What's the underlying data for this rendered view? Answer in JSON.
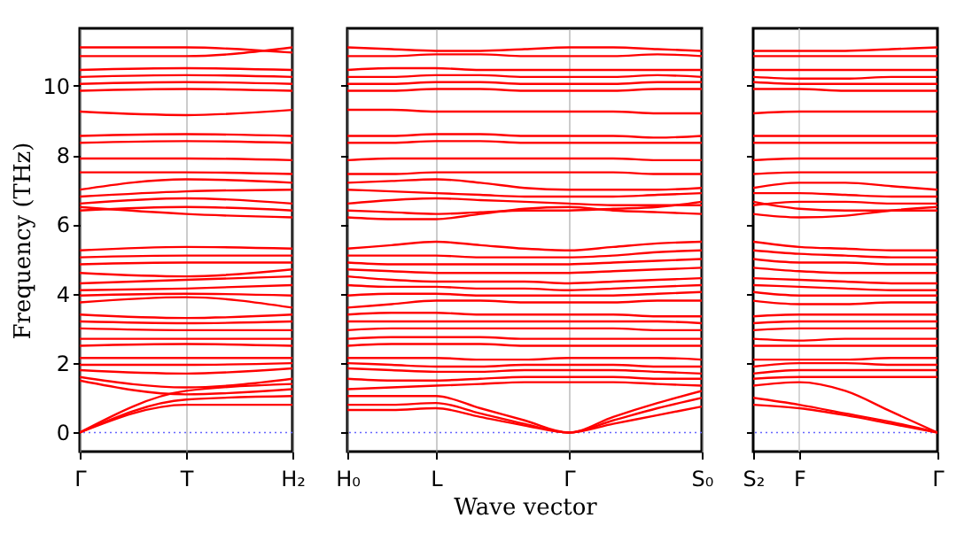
{
  "chart_data": [
    {
      "type": "line",
      "ylabel": "Frequency (THz)",
      "categories": [
        "Γ",
        "T",
        "H₂"
      ],
      "ylim": [
        -0.55,
        11.65
      ],
      "yticks": [
        0,
        2,
        4,
        6,
        8,
        10
      ],
      "grid": "x",
      "tick_labels": true,
      "ref_lines": [
        {
          "axis": "y",
          "value": 0,
          "color": "#6666ff",
          "line_style": "dotted"
        }
      ],
      "series": [
        {
          "color": "#ff0000",
          "values": [
            11.1,
            11.1,
            10.95
          ]
        },
        {
          "color": "#ff0000",
          "values": [
            10.85,
            10.85,
            11.1
          ]
        },
        {
          "color": "#ff0000",
          "values": [
            10.45,
            10.5,
            10.45
          ]
        },
        {
          "color": "#ff0000",
          "values": [
            10.25,
            10.3,
            10.25
          ]
        },
        {
          "color": "#ff0000",
          "values": [
            10.05,
            10.1,
            10.05
          ]
        },
        {
          "color": "#ff0000",
          "values": [
            9.85,
            9.9,
            9.85
          ]
        },
        {
          "color": "#ff0000",
          "values": [
            9.25,
            9.15,
            9.3
          ]
        },
        {
          "color": "#ff0000",
          "values": [
            8.55,
            8.6,
            8.55
          ]
        },
        {
          "color": "#ff0000",
          "values": [
            8.35,
            8.4,
            8.35
          ]
        },
        {
          "color": "#ff0000",
          "values": [
            7.9,
            7.9,
            7.85
          ]
        },
        {
          "color": "#ff0000",
          "values": [
            7.5,
            7.5,
            7.45
          ]
        },
        {
          "color": "#ff0000",
          "values": [
            7.0,
            7.3,
            7.2
          ]
        },
        {
          "color": "#ff0000",
          "values": [
            6.8,
            6.95,
            7.0
          ]
        },
        {
          "color": "#ff0000",
          "values": [
            6.6,
            6.75,
            6.6
          ]
        },
        {
          "color": "#ff0000",
          "values": [
            6.4,
            6.5,
            6.4
          ]
        },
        {
          "color": "#ff0000",
          "values": [
            6.5,
            6.3,
            6.2
          ]
        },
        {
          "color": "#ff0000",
          "values": [
            5.25,
            5.35,
            5.3
          ]
        },
        {
          "color": "#ff0000",
          "values": [
            5.05,
            5.1,
            5.1
          ]
        },
        {
          "color": "#ff0000",
          "values": [
            4.85,
            4.9,
            4.9
          ]
        },
        {
          "color": "#ff0000",
          "values": [
            4.6,
            4.5,
            4.7
          ]
        },
        {
          "color": "#ff0000",
          "values": [
            4.3,
            4.4,
            4.5
          ]
        },
        {
          "color": "#ff0000",
          "values": [
            4.1,
            4.15,
            4.25
          ]
        },
        {
          "color": "#ff0000",
          "values": [
            3.95,
            4.0,
            3.95
          ]
        },
        {
          "color": "#ff0000",
          "values": [
            3.75,
            3.9,
            3.6
          ]
        },
        {
          "color": "#ff0000",
          "values": [
            3.4,
            3.3,
            3.4
          ]
        },
        {
          "color": "#ff0000",
          "values": [
            3.2,
            3.15,
            3.2
          ]
        },
        {
          "color": "#ff0000",
          "values": [
            3.0,
            2.95,
            2.95
          ]
        },
        {
          "color": "#ff0000",
          "values": [
            2.7,
            2.7,
            2.7
          ]
        },
        {
          "color": "#ff0000",
          "values": [
            2.5,
            2.55,
            2.5
          ]
        },
        {
          "color": "#ff0000",
          "values": [
            2.15,
            2.15,
            2.15
          ]
        },
        {
          "color": "#ff0000",
          "values": [
            1.95,
            1.95,
            2.0
          ]
        },
        {
          "color": "#ff0000",
          "values": [
            1.8,
            1.7,
            1.85
          ]
        },
        {
          "color": "#ff0000",
          "values": [
            1.6,
            1.3,
            1.55
          ]
        },
        {
          "color": "#ff0000",
          "values": [
            1.5,
            1.1,
            1.25
          ]
        },
        {
          "color": "#ff0000",
          "values": [
            0,
            1.2,
            1.4
          ]
        },
        {
          "color": "#ff0000",
          "values": [
            0,
            0.95,
            1.05
          ]
        },
        {
          "color": "#ff0000",
          "values": [
            0,
            0.8,
            0.8
          ]
        }
      ]
    },
    {
      "type": "line",
      "xlabel": "Wave vector",
      "categories": [
        "H₀",
        null,
        "L",
        null,
        null,
        "Γ",
        null,
        null,
        "S₀"
      ],
      "ylim": [
        -0.55,
        11.65
      ],
      "grid": "x",
      "tick_labels": "x",
      "ref_lines": [
        {
          "axis": "y",
          "value": 0,
          "color": "#6666ff",
          "line_style": "dotted"
        }
      ],
      "series": [
        {
          "color": "#ff0000",
          "values": [
            11.1,
            11.05,
            11.0,
            11.0,
            11.05,
            11.1,
            11.1,
            11.05,
            11.0
          ]
        },
        {
          "color": "#ff0000",
          "values": [
            10.85,
            10.85,
            10.9,
            10.9,
            10.85,
            10.85,
            10.85,
            10.9,
            10.85
          ]
        },
        {
          "color": "#ff0000",
          "values": [
            10.45,
            10.5,
            10.5,
            10.45,
            10.45,
            10.45,
            10.45,
            10.45,
            10.45
          ]
        },
        {
          "color": "#ff0000",
          "values": [
            10.25,
            10.25,
            10.3,
            10.3,
            10.25,
            10.25,
            10.25,
            10.3,
            10.25
          ]
        },
        {
          "color": "#ff0000",
          "values": [
            10.05,
            10.05,
            10.1,
            10.1,
            10.05,
            10.05,
            10.05,
            10.1,
            10.1
          ]
        },
        {
          "color": "#ff0000",
          "values": [
            9.85,
            9.85,
            9.9,
            9.9,
            9.85,
            9.85,
            9.85,
            9.9,
            9.9
          ]
        },
        {
          "color": "#ff0000",
          "values": [
            9.3,
            9.3,
            9.25,
            9.25,
            9.25,
            9.25,
            9.25,
            9.2,
            9.2
          ]
        },
        {
          "color": "#ff0000",
          "values": [
            8.55,
            8.55,
            8.6,
            8.6,
            8.55,
            8.55,
            8.55,
            8.5,
            8.55
          ]
        },
        {
          "color": "#ff0000",
          "values": [
            8.35,
            8.35,
            8.4,
            8.4,
            8.35,
            8.35,
            8.35,
            8.35,
            8.35
          ]
        },
        {
          "color": "#ff0000",
          "values": [
            7.85,
            7.9,
            7.9,
            7.9,
            7.9,
            7.9,
            7.9,
            7.85,
            7.85
          ]
        },
        {
          "color": "#ff0000",
          "values": [
            7.45,
            7.45,
            7.5,
            7.5,
            7.5,
            7.5,
            7.5,
            7.45,
            7.45
          ]
        },
        {
          "color": "#ff0000",
          "values": [
            7.2,
            7.25,
            7.3,
            7.2,
            7.05,
            7.0,
            7.0,
            7.0,
            7.05
          ]
        },
        {
          "color": "#ff0000",
          "values": [
            7.0,
            6.95,
            6.9,
            6.85,
            6.8,
            6.8,
            6.8,
            6.85,
            6.9
          ]
        },
        {
          "color": "#ff0000",
          "values": [
            6.6,
            6.7,
            6.75,
            6.7,
            6.65,
            6.6,
            6.55,
            6.55,
            6.55
          ]
        },
        {
          "color": "#ff0000",
          "values": [
            6.4,
            6.35,
            6.3,
            6.35,
            6.4,
            6.4,
            6.45,
            6.5,
            6.65
          ]
        },
        {
          "color": "#ff0000",
          "values": [
            6.2,
            6.15,
            6.15,
            6.3,
            6.45,
            6.5,
            6.4,
            6.35,
            6.3
          ]
        },
        {
          "color": "#ff0000",
          "values": [
            5.3,
            5.4,
            5.5,
            5.4,
            5.3,
            5.25,
            5.35,
            5.45,
            5.5
          ]
        },
        {
          "color": "#ff0000",
          "values": [
            5.1,
            5.1,
            5.1,
            5.05,
            5.05,
            5.05,
            5.1,
            5.2,
            5.25
          ]
        },
        {
          "color": "#ff0000",
          "values": [
            4.9,
            4.85,
            4.85,
            4.85,
            4.85,
            4.85,
            4.9,
            4.95,
            5.0
          ]
        },
        {
          "color": "#ff0000",
          "values": [
            4.7,
            4.65,
            4.6,
            4.6,
            4.6,
            4.6,
            4.65,
            4.7,
            4.75
          ]
        },
        {
          "color": "#ff0000",
          "values": [
            4.5,
            4.4,
            4.35,
            4.35,
            4.35,
            4.3,
            4.35,
            4.4,
            4.45
          ]
        },
        {
          "color": "#ff0000",
          "values": [
            4.25,
            4.2,
            4.2,
            4.15,
            4.15,
            4.1,
            4.15,
            4.2,
            4.25
          ]
        },
        {
          "color": "#ff0000",
          "values": [
            3.95,
            4.0,
            4.0,
            3.95,
            3.95,
            3.95,
            3.95,
            4.0,
            4.05
          ]
        },
        {
          "color": "#ff0000",
          "values": [
            3.6,
            3.7,
            3.8,
            3.8,
            3.75,
            3.75,
            3.75,
            3.8,
            3.8
          ]
        },
        {
          "color": "#ff0000",
          "values": [
            3.4,
            3.45,
            3.45,
            3.4,
            3.4,
            3.4,
            3.4,
            3.35,
            3.35
          ]
        },
        {
          "color": "#ff0000",
          "values": [
            3.2,
            3.2,
            3.2,
            3.2,
            3.2,
            3.2,
            3.2,
            3.2,
            3.15
          ]
        },
        {
          "color": "#ff0000",
          "values": [
            2.95,
            3.0,
            3.0,
            3.0,
            3.0,
            3.0,
            3.0,
            2.95,
            2.95
          ]
        },
        {
          "color": "#ff0000",
          "values": [
            2.7,
            2.75,
            2.75,
            2.75,
            2.7,
            2.7,
            2.7,
            2.7,
            2.7
          ]
        },
        {
          "color": "#ff0000",
          "values": [
            2.5,
            2.55,
            2.55,
            2.55,
            2.5,
            2.5,
            2.5,
            2.5,
            2.5
          ]
        },
        {
          "color": "#ff0000",
          "values": [
            2.15,
            2.15,
            2.15,
            2.1,
            2.1,
            2.15,
            2.15,
            2.15,
            2.1
          ]
        },
        {
          "color": "#ff0000",
          "values": [
            2.0,
            1.95,
            1.9,
            1.9,
            1.95,
            1.95,
            1.95,
            1.9,
            1.9
          ]
        },
        {
          "color": "#ff0000",
          "values": [
            1.85,
            1.8,
            1.75,
            1.75,
            1.8,
            1.8,
            1.8,
            1.75,
            1.7
          ]
        },
        {
          "color": "#ff0000",
          "values": [
            1.55,
            1.5,
            1.5,
            1.55,
            1.6,
            1.6,
            1.6,
            1.55,
            1.55
          ]
        },
        {
          "color": "#ff0000",
          "values": [
            1.25,
            1.3,
            1.35,
            1.4,
            1.45,
            1.45,
            1.45,
            1.4,
            1.35
          ]
        },
        {
          "color": "#ff0000",
          "values": [
            1.05,
            1.05,
            1.05,
            0.7,
            0.35,
            0,
            0.45,
            0.85,
            1.2
          ]
        },
        {
          "color": "#ff0000",
          "values": [
            0.8,
            0.8,
            0.85,
            0.55,
            0.25,
            0,
            0.35,
            0.7,
            1.0
          ]
        },
        {
          "color": "#ff0000",
          "values": [
            0.65,
            0.65,
            0.7,
            0.45,
            0.2,
            0,
            0.25,
            0.5,
            0.75
          ]
        }
      ]
    },
    {
      "type": "line",
      "categories": [
        "S₂",
        "F",
        null,
        null,
        "Γ"
      ],
      "ylim": [
        -0.55,
        11.65
      ],
      "tick_labels": "x",
      "ref_lines": [
        {
          "axis": "y",
          "value": 0,
          "color": "#6666ff",
          "line_style": "dotted"
        },
        {
          "axis": "x",
          "value": "F",
          "color": "#cccccc",
          "line_style": "solid"
        }
      ],
      "series": [
        {
          "color": "#ff0000",
          "values": [
            11.0,
            11.0,
            11.0,
            11.05,
            11.1
          ]
        },
        {
          "color": "#ff0000",
          "values": [
            10.85,
            10.85,
            10.85,
            10.85,
            10.85
          ]
        },
        {
          "color": "#ff0000",
          "values": [
            10.45,
            10.45,
            10.45,
            10.45,
            10.45
          ]
        },
        {
          "color": "#ff0000",
          "values": [
            10.25,
            10.2,
            10.2,
            10.25,
            10.25
          ]
        },
        {
          "color": "#ff0000",
          "values": [
            10.1,
            10.05,
            10.05,
            10.05,
            10.05
          ]
        },
        {
          "color": "#ff0000",
          "values": [
            9.9,
            9.9,
            9.85,
            9.85,
            9.85
          ]
        },
        {
          "color": "#ff0000",
          "values": [
            9.2,
            9.25,
            9.25,
            9.25,
            9.25
          ]
        },
        {
          "color": "#ff0000",
          "values": [
            8.55,
            8.55,
            8.55,
            8.55,
            8.55
          ]
        },
        {
          "color": "#ff0000",
          "values": [
            8.35,
            8.35,
            8.35,
            8.35,
            8.35
          ]
        },
        {
          "color": "#ff0000",
          "values": [
            7.85,
            7.9,
            7.9,
            7.9,
            7.9
          ]
        },
        {
          "color": "#ff0000",
          "values": [
            7.45,
            7.5,
            7.5,
            7.5,
            7.5
          ]
        },
        {
          "color": "#ff0000",
          "values": [
            7.05,
            7.2,
            7.2,
            7.1,
            7.0
          ]
        },
        {
          "color": "#ff0000",
          "values": [
            6.9,
            6.9,
            6.85,
            6.8,
            6.8
          ]
        },
        {
          "color": "#ff0000",
          "values": [
            6.55,
            6.65,
            6.65,
            6.6,
            6.6
          ]
        },
        {
          "color": "#ff0000",
          "values": [
            6.65,
            6.45,
            6.4,
            6.4,
            6.4
          ]
        },
        {
          "color": "#ff0000",
          "values": [
            6.3,
            6.2,
            6.25,
            6.4,
            6.5
          ]
        },
        {
          "color": "#ff0000",
          "values": [
            5.5,
            5.35,
            5.3,
            5.25,
            5.25
          ]
        },
        {
          "color": "#ff0000",
          "values": [
            5.25,
            5.15,
            5.1,
            5.05,
            5.05
          ]
        },
        {
          "color": "#ff0000",
          "values": [
            5.0,
            4.9,
            4.9,
            4.85,
            4.85
          ]
        },
        {
          "color": "#ff0000",
          "values": [
            4.75,
            4.65,
            4.6,
            4.6,
            4.6
          ]
        },
        {
          "color": "#ff0000",
          "values": [
            4.45,
            4.4,
            4.35,
            4.3,
            4.3
          ]
        },
        {
          "color": "#ff0000",
          "values": [
            4.25,
            4.2,
            4.15,
            4.1,
            4.1
          ]
        },
        {
          "color": "#ff0000",
          "values": [
            4.05,
            3.95,
            3.95,
            3.95,
            3.95
          ]
        },
        {
          "color": "#ff0000",
          "values": [
            3.8,
            3.7,
            3.7,
            3.75,
            3.75
          ]
        },
        {
          "color": "#ff0000",
          "values": [
            3.35,
            3.4,
            3.4,
            3.4,
            3.4
          ]
        },
        {
          "color": "#ff0000",
          "values": [
            3.15,
            3.2,
            3.2,
            3.2,
            3.2
          ]
        },
        {
          "color": "#ff0000",
          "values": [
            2.95,
            3.0,
            3.0,
            3.0,
            3.0
          ]
        },
        {
          "color": "#ff0000",
          "values": [
            2.7,
            2.65,
            2.7,
            2.7,
            2.7
          ]
        },
        {
          "color": "#ff0000",
          "values": [
            2.5,
            2.5,
            2.5,
            2.5,
            2.5
          ]
        },
        {
          "color": "#ff0000",
          "values": [
            2.1,
            2.1,
            2.1,
            2.15,
            2.15
          ]
        },
        {
          "color": "#ff0000",
          "values": [
            1.9,
            2.0,
            2.0,
            1.95,
            1.95
          ]
        },
        {
          "color": "#ff0000",
          "values": [
            1.7,
            1.8,
            1.8,
            1.8,
            1.8
          ]
        },
        {
          "color": "#ff0000",
          "values": [
            1.55,
            1.6,
            1.6,
            1.6,
            1.6
          ]
        },
        {
          "color": "#ff0000",
          "values": [
            1.35,
            1.45,
            1.2,
            0.6,
            0
          ]
        },
        {
          "color": "#ff0000",
          "values": [
            1.0,
            0.8,
            0.55,
            0.3,
            0
          ]
        },
        {
          "color": "#ff0000",
          "values": [
            0.8,
            0.7,
            0.5,
            0.25,
            0
          ]
        }
      ]
    }
  ]
}
